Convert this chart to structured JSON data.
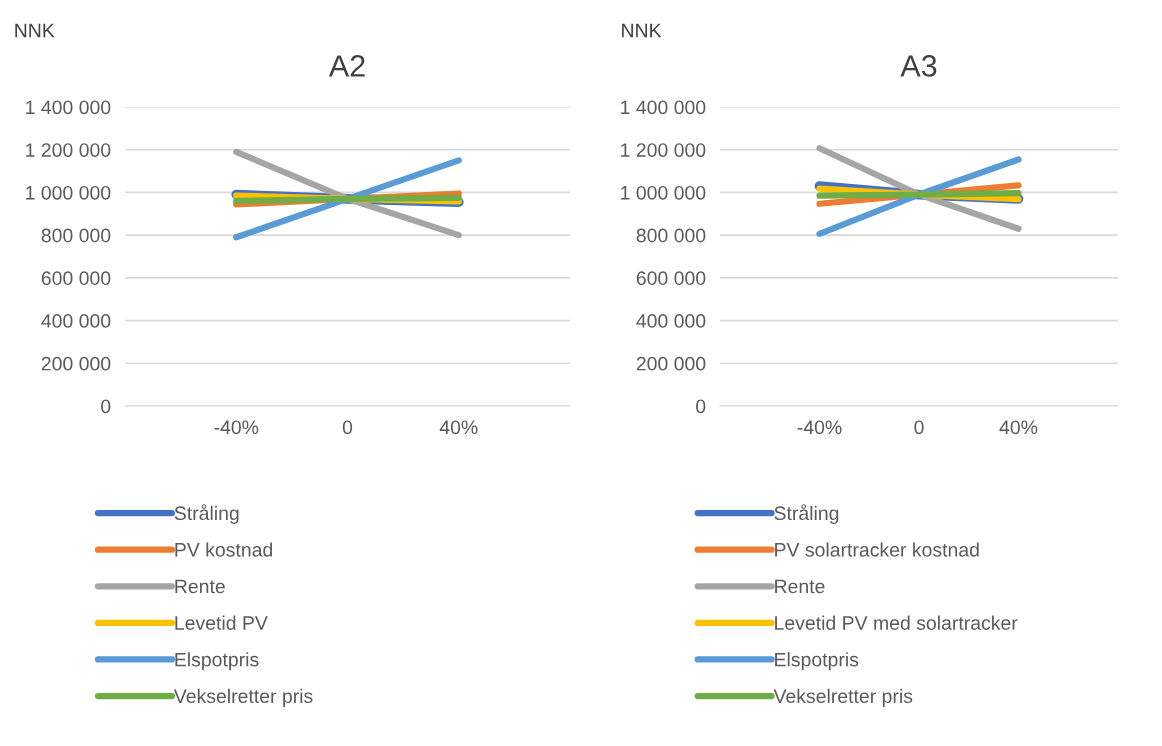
{
  "chart_data": [
    {
      "type": "line",
      "title": "A2",
      "ylabel": "NNK",
      "categories": [
        "-40%",
        "0",
        "40%"
      ],
      "ylim": [
        0,
        1400000
      ],
      "yticks": [
        {
          "value": 0,
          "label": "0"
        },
        {
          "value": 200000,
          "label": "200 000"
        },
        {
          "value": 400000,
          "label": "400 000"
        },
        {
          "value": 600000,
          "label": "600 000"
        },
        {
          "value": 800000,
          "label": "800 000"
        },
        {
          "value": 1000000,
          "label": "1 000 000"
        },
        {
          "value": 1200000,
          "label": "1 200 000"
        },
        {
          "value": 1400000,
          "label": "1 400 000"
        }
      ],
      "grid": "y",
      "legend": "bottom",
      "marker": "none",
      "line_style": "solid",
      "series": [
        {
          "name": "Stråling",
          "color": "#4472c4",
          "values": [
            990000,
            970000,
            955000
          ]
        },
        {
          "name": "PV kostnad",
          "color": "#ed7d31",
          "values": [
            944000,
            970000,
            995000
          ]
        },
        {
          "name": "Rente",
          "color": "#a5a5a5",
          "values": [
            1190000,
            970000,
            800000
          ]
        },
        {
          "name": "Levetid PV",
          "color": "#ffc000",
          "values": [
            985000,
            970000,
            958000
          ]
        },
        {
          "name": "Elspotpris",
          "color": "#5b9bd5",
          "values": [
            790000,
            970000,
            1150000
          ]
        },
        {
          "name": "Vekselretter pris",
          "color": "#70ad47",
          "values": [
            960000,
            970000,
            975000
          ]
        }
      ]
    },
    {
      "type": "line",
      "title": "A3",
      "ylabel": "NNK",
      "categories": [
        "-40%",
        "0",
        "40%"
      ],
      "ylim": [
        0,
        1400000
      ],
      "yticks": [
        {
          "value": 0,
          "label": "0"
        },
        {
          "value": 200000,
          "label": "200 000"
        },
        {
          "value": 400000,
          "label": "400 000"
        },
        {
          "value": 600000,
          "label": "600 000"
        },
        {
          "value": 800000,
          "label": "800 000"
        },
        {
          "value": 1000000,
          "label": "1 000 000"
        },
        {
          "value": 1200000,
          "label": "1 200 000"
        },
        {
          "value": 1400000,
          "label": "1 400 000"
        }
      ],
      "grid": "y",
      "legend": "bottom",
      "marker": "none",
      "line_style": "solid",
      "series": [
        {
          "name": "Stråling",
          "color": "#4472c4",
          "values": [
            1030000,
            990000,
            970000
          ]
        },
        {
          "name": "PV solartracker kostnad",
          "color": "#ed7d31",
          "values": [
            947000,
            990000,
            1033000
          ]
        },
        {
          "name": "Rente",
          "color": "#a5a5a5",
          "values": [
            1207000,
            990000,
            830000
          ]
        },
        {
          "name": "Levetid PV med solartracker",
          "color": "#ffc000",
          "values": [
            1018000,
            990000,
            969000
          ]
        },
        {
          "name": "Elspotpris",
          "color": "#5b9bd5",
          "values": [
            806000,
            990000,
            1154000
          ]
        },
        {
          "name": "Vekselretter pris",
          "color": "#70ad47",
          "values": [
            985000,
            990000,
            997000
          ]
        }
      ]
    }
  ]
}
